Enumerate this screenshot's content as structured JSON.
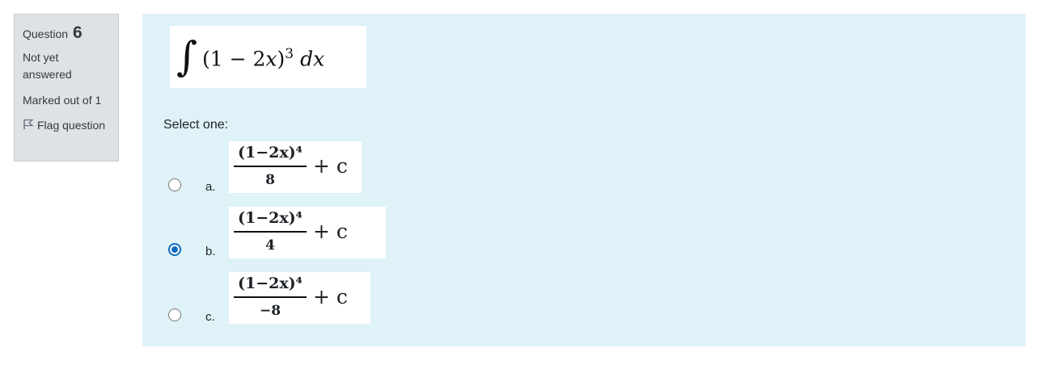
{
  "info": {
    "question_label": "Question",
    "question_number": "6",
    "state": "Not yet answered",
    "grade": "Marked out of 1",
    "flag_label": "Flag question"
  },
  "question": {
    "integral_symbol": "∫",
    "integrand_open": "(1 − 2",
    "integrand_var": "x",
    "integrand_close": ")",
    "integrand_power": "3",
    "integrand_dx": "dx",
    "prompt": "Select one:"
  },
  "options": [
    {
      "letter": "a.",
      "numerator": "(1−2x)⁴",
      "denominator": "8",
      "tail": "+ c",
      "checked": false
    },
    {
      "letter": "b.",
      "numerator": "(1−2x)⁴",
      "denominator": "4",
      "tail": "+ c",
      "checked": true
    },
    {
      "letter": "c.",
      "numerator": "(1−2x)⁴",
      "denominator": "−8",
      "tail": "+ c",
      "checked": false
    }
  ],
  "colors": {
    "info_bg": "#dee2e6",
    "content_bg": "#def2f8",
    "radio_selected": "#0f6cbf"
  }
}
